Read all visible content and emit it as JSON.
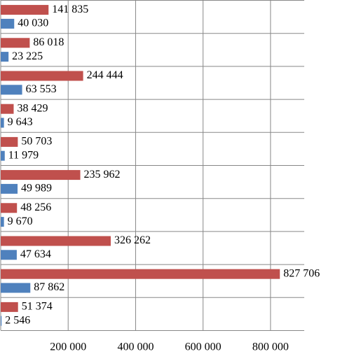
{
  "chart_data": {
    "type": "hbar",
    "series": [
      {
        "color": "#c0504d",
        "values": [
          141835,
          86018,
          244444,
          38429,
          50703,
          235962,
          48256,
          326262,
          827706,
          51374
        ],
        "value_labels": [
          "141 835",
          "86 018",
          "244 444",
          "38 429",
          "50 703",
          "235 962",
          "48 256",
          "326 262",
          "827 706",
          "51 374"
        ]
      },
      {
        "color": "#4f81bd",
        "values": [
          40030,
          23225,
          63553,
          9643,
          11979,
          49989,
          9670,
          47634,
          87862,
          2546
        ],
        "value_labels": [
          "40 030",
          "23 225",
          "63 553",
          "9 643",
          "11 979",
          "49 989",
          "9 670",
          "47 634",
          "87 862",
          "2 546"
        ]
      }
    ],
    "xlim": [
      0,
      900000
    ],
    "xticks": [
      {
        "value": 200000,
        "label": "200 000"
      },
      {
        "value": 400000,
        "label": "400 000"
      },
      {
        "value": 600000,
        "label": "600 000"
      },
      {
        "value": 800000,
        "label": "800 000"
      }
    ],
    "grid": true
  }
}
